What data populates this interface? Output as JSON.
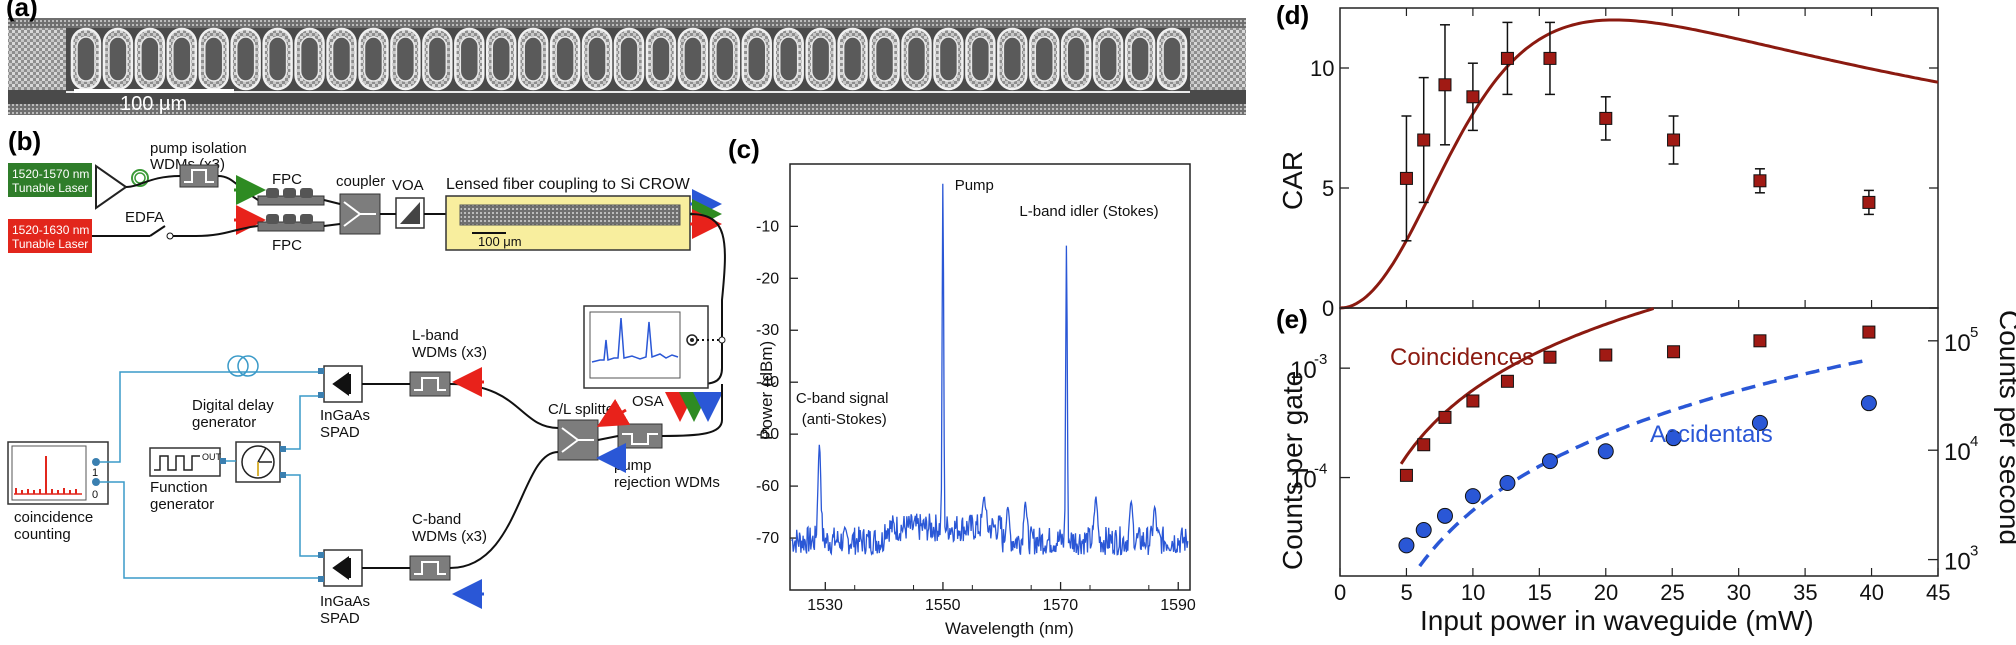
{
  "figure": {
    "panel_a": {
      "letter": "(a)",
      "scalebar_label": "100 μm"
    },
    "panel_b": {
      "letter": "(b)",
      "laser1": "1520-1570 nm\nTunable Laser",
      "laser2": "1520-1630 nm\nTunable Laser",
      "pump_isolation": "pump isolation\nWDMs (x3)",
      "edfa": "EDFA",
      "fpc_top": "FPC",
      "fpc_bottom": "FPC",
      "coupler": "coupler",
      "voa": "VOA",
      "crow_title": "Lensed fiber coupling to Si CROW",
      "crow_scale": "100 μm",
      "osa": "OSA",
      "lband_wdm": "L-band\nWDMs (x3)",
      "cband_wdm": "C-band\nWDMs (x3)",
      "cl_splitter": "C/L splitter",
      "pump_rejection": "pump\nrejection WDMs",
      "delay_gen": "Digital delay\ngenerator",
      "func_gen": "Function\ngenerator",
      "func_out": "OUT",
      "spad_top": "InGaAs\nSPAD",
      "spad_bottom": "InGaAs\nSPAD",
      "coinc": "coincidence\ncounting",
      "coinc_ch1": "1",
      "coinc_ch0": "0"
    },
    "arrow_colors": {
      "red": "#e8221b",
      "green": "#2e8b22",
      "blue": "#2a57d6"
    },
    "laser1_color": "#2f7d2a",
    "laser2_color": "#e2261c"
  },
  "chart_data": [
    {
      "panel": "(c)",
      "type": "line",
      "xlabel": "Wavelength (nm)",
      "ylabel": "Power (dBm)",
      "xlim": [
        1524,
        1592
      ],
      "ylim": [
        -80,
        2
      ],
      "xticks": [
        1530,
        1550,
        1570,
        1590
      ],
      "yticks": [
        -10,
        -20,
        -30,
        -40,
        -50,
        -60,
        -70
      ],
      "peaks": [
        {
          "x": 1529.0,
          "y": -52
        },
        {
          "x": 1550.0,
          "y": -1
        },
        {
          "x": 1557.0,
          "y": -62
        },
        {
          "x": 1561.0,
          "y": -64
        },
        {
          "x": 1564.0,
          "y": -63
        },
        {
          "x": 1571.0,
          "y": -13
        },
        {
          "x": 1576.0,
          "y": -62
        },
        {
          "x": 1582.0,
          "y": -63
        },
        {
          "x": 1586.0,
          "y": -64
        }
      ],
      "annotations": [
        {
          "text": "Pump",
          "x": 1552,
          "y": -3
        },
        {
          "text": "L-band idler (Stokes)",
          "x": 1563,
          "y": -8
        },
        {
          "text": "C-band signal",
          "x": 1525,
          "y": -44
        },
        {
          "text": "(anti-Stokes)",
          "x": 1526,
          "y": -48
        }
      ],
      "color": "#2a57d6"
    },
    {
      "panel": "(d)",
      "type": "scatter",
      "ylabel": "CAR",
      "xlim": [
        0,
        45
      ],
      "ylim": [
        0,
        12.5
      ],
      "yticks": [
        0,
        5,
        10
      ],
      "points": [
        {
          "x": 5.0,
          "y": 5.4,
          "err": 2.6
        },
        {
          "x": 6.3,
          "y": 7.0,
          "err": 2.6
        },
        {
          "x": 7.9,
          "y": 9.3,
          "err": 2.5
        },
        {
          "x": 10.0,
          "y": 8.8,
          "err": 1.4
        },
        {
          "x": 12.6,
          "y": 10.4,
          "err": 1.5
        },
        {
          "x": 15.8,
          "y": 10.4,
          "err": 1.5
        },
        {
          "x": 20.0,
          "y": 7.9,
          "err": 0.9
        },
        {
          "x": 25.1,
          "y": 7.0,
          "err": 1.0
        },
        {
          "x": 31.6,
          "y": 5.3,
          "err": 0.5
        },
        {
          "x": 39.8,
          "y": 4.4,
          "err": 0.5
        }
      ],
      "fit_color": "#8b1a10",
      "marker_color": "#a01a14"
    },
    {
      "panel": "(e)",
      "type": "scatter",
      "xlabel": "Input power in waveguide (mW)",
      "ylabel": "Counts per gate",
      "ylabel_right": "Counts per second",
      "xlim": [
        0,
        45
      ],
      "xticks": [
        0,
        5,
        10,
        15,
        20,
        25,
        30,
        35,
        40,
        45
      ],
      "ylog_range": [
        -4.9,
        -2.45
      ],
      "yticks_left": [
        {
          "exp": "-4",
          "label": "10"
        },
        {
          "exp": "-3",
          "label": "10"
        }
      ],
      "yticks_right": [
        {
          "exp": "3",
          "label": "10",
          "v": -4.75
        },
        {
          "exp": "4",
          "label": "10",
          "v": -3.75
        },
        {
          "exp": "5",
          "label": "10",
          "v": -2.75
        }
      ],
      "series": [
        {
          "name": "Coincidences",
          "color": "#8b1a10",
          "points": [
            [
              5.0,
              -3.98
            ],
            [
              6.3,
              -3.7
            ],
            [
              7.9,
              -3.45
            ],
            [
              10.0,
              -3.3
            ],
            [
              12.6,
              -3.12
            ],
            [
              15.8,
              -2.9
            ],
            [
              20.0,
              -2.88
            ],
            [
              25.1,
              -2.85
            ],
            [
              31.6,
              -2.75
            ],
            [
              39.8,
              -2.67
            ]
          ]
        },
        {
          "name": "Accidentals",
          "color": "#2a57d6",
          "points": [
            [
              5.0,
              -4.62
            ],
            [
              6.3,
              -4.48
            ],
            [
              7.9,
              -4.35
            ],
            [
              10.0,
              -4.17
            ],
            [
              12.6,
              -4.05
            ],
            [
              15.8,
              -3.85
            ],
            [
              20.0,
              -3.76
            ],
            [
              25.1,
              -3.64
            ],
            [
              31.6,
              -3.5
            ],
            [
              39.8,
              -3.32
            ]
          ]
        }
      ]
    }
  ]
}
